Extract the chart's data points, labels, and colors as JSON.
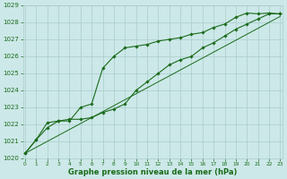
{
  "x_hours": [
    0,
    1,
    2,
    3,
    4,
    5,
    6,
    7,
    8,
    9,
    10,
    11,
    12,
    13,
    14,
    15,
    16,
    17,
    18,
    19,
    20,
    21,
    22,
    23
  ],
  "line_upper": [
    1020.3,
    1021.1,
    1021.8,
    1022.2,
    1022.2,
    1023.0,
    1023.2,
    1025.3,
    1026.0,
    1026.5,
    1026.6,
    1026.7,
    1026.9,
    1027.0,
    1027.1,
    1027.3,
    1027.4,
    1027.7,
    1027.9,
    1028.3,
    1028.55,
    1028.5,
    1028.55,
    1028.5
  ],
  "line_lower": [
    1020.3,
    1021.1,
    1022.1,
    1022.2,
    1022.3,
    1022.3,
    1022.4,
    1022.7,
    1022.9,
    1023.2,
    1024.0,
    1024.5,
    1025.0,
    1025.5,
    1025.8,
    1026.0,
    1026.5,
    1026.8,
    1027.2,
    1027.6,
    1027.9,
    1028.2,
    1028.5,
    1028.5
  ],
  "line_diag": [
    1020.3,
    1020.65,
    1021.0,
    1021.35,
    1021.7,
    1022.05,
    1022.4,
    1022.75,
    1023.1,
    1023.45,
    1023.8,
    1024.15,
    1024.5,
    1024.85,
    1025.2,
    1025.55,
    1025.9,
    1026.25,
    1026.6,
    1026.95,
    1027.3,
    1027.65,
    1028.0,
    1028.35
  ],
  "line_color": "#1a6b1a",
  "bg_color": "#cce8e8",
  "grid_color": "#aacccc",
  "text_color": "#1a6b1a",
  "xlabel": "Graphe pression niveau de la mer (hPa)",
  "ylim": [
    1020,
    1029
  ],
  "xlim": [
    0,
    23
  ],
  "yticks": [
    1020,
    1021,
    1022,
    1023,
    1024,
    1025,
    1026,
    1027,
    1028,
    1029
  ],
  "xticks": [
    0,
    1,
    2,
    3,
    4,
    5,
    6,
    7,
    8,
    9,
    10,
    11,
    12,
    13,
    14,
    15,
    16,
    17,
    18,
    19,
    20,
    21,
    22,
    23
  ],
  "ytick_fontsize": 5,
  "xtick_fontsize": 4.2,
  "xlabel_fontsize": 6.0
}
